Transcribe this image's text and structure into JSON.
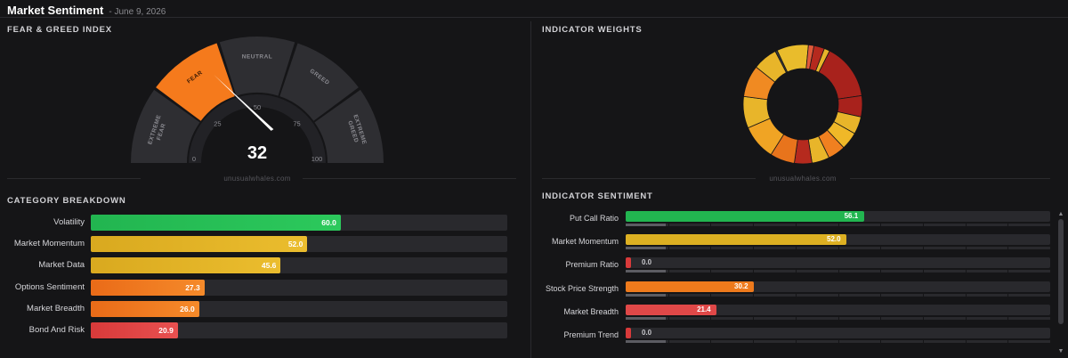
{
  "header": {
    "title": "Market Sentiment",
    "date": "- June 9, 2026"
  },
  "fear_greed": {
    "title": "FEAR & GREED INDEX",
    "value": 32,
    "value_label": "32",
    "min": 0,
    "max": 100,
    "segments": [
      {
        "label": "EXTREME FEAR",
        "line1": "EXTREME",
        "line2": "FEAR",
        "from": 0,
        "to": 20,
        "active": false
      },
      {
        "label": "FEAR",
        "line1": "FEAR",
        "line2": "",
        "from": 20,
        "to": 40,
        "active": true
      },
      {
        "label": "NEUTRAL",
        "line1": "NEUTRAL",
        "line2": "",
        "from": 40,
        "to": 60,
        "active": false
      },
      {
        "label": "GREED",
        "line1": "GREED",
        "line2": "",
        "from": 60,
        "to": 80,
        "active": false
      },
      {
        "label": "EXTREME GREED",
        "line1": "EXTREME",
        "line2": "GREED",
        "from": 80,
        "to": 100,
        "active": false
      }
    ],
    "ticks": [
      {
        "value": 0,
        "label": "0"
      },
      {
        "value": 25,
        "label": "25"
      },
      {
        "value": 50,
        "label": "50"
      },
      {
        "value": 75,
        "label": "75"
      },
      {
        "value": 100,
        "label": "100"
      }
    ],
    "colors": {
      "inactive": "#2e2e32",
      "active": "#f57a1c",
      "needle": "#ffffff"
    },
    "watermark": "unusualwhales.com"
  },
  "weights": {
    "title": "INDICATOR WEIGHTS",
    "watermark": "unusualwhales.com"
  },
  "chart_data": {
    "type": "pie",
    "title": "INDICATOR WEIGHTS",
    "donut": true,
    "slices": [
      {
        "value": 7,
        "color": "#e8b52a"
      },
      {
        "value": 0.6,
        "color": "#3a3a3a"
      },
      {
        "value": 9,
        "color": "#e9bc2c"
      },
      {
        "value": 1.6,
        "color": "#e05a3a"
      },
      {
        "value": 3,
        "color": "#b52a1e"
      },
      {
        "value": 1.6,
        "color": "#e8b52a"
      },
      {
        "value": 16,
        "color": "#a8221c"
      },
      {
        "value": 6,
        "color": "#a8221c"
      },
      {
        "value": 5,
        "color": "#e8b52a"
      },
      {
        "value": 5,
        "color": "#f0b828"
      },
      {
        "value": 5,
        "color": "#f08020"
      },
      {
        "value": 5,
        "color": "#e8b52a"
      },
      {
        "value": 5,
        "color": "#b52a1e"
      },
      {
        "value": 7,
        "color": "#e8741c"
      },
      {
        "value": 10,
        "color": "#f0a424"
      },
      {
        "value": 9,
        "color": "#e8b52a"
      },
      {
        "value": 9,
        "color": "#f08a22"
      }
    ]
  },
  "category": {
    "title": "CATEGORY BREAKDOWN",
    "max": 100,
    "rows": [
      {
        "label": "Volatility",
        "value": 60.0,
        "value_label": "60.0",
        "color": "#22b550",
        "color2": "#2cc95c"
      },
      {
        "label": "Market Momentum",
        "value": 52.0,
        "value_label": "52.0",
        "color": "#d9a91f",
        "color2": "#ebbd2e"
      },
      {
        "label": "Market Data",
        "value": 45.6,
        "value_label": "45.6",
        "color": "#d9a91f",
        "color2": "#ebbd2e"
      },
      {
        "label": "Options Sentiment",
        "value": 27.3,
        "value_label": "27.3",
        "color": "#ea6b18",
        "color2": "#f58a2a"
      },
      {
        "label": "Market Breadth",
        "value": 26.0,
        "value_label": "26.0",
        "color": "#ea6b18",
        "color2": "#f58a2a"
      },
      {
        "label": "Bond And Risk",
        "value": 20.9,
        "value_label": "20.9",
        "color": "#d83a3a",
        "color2": "#e85050"
      }
    ]
  },
  "indicators": {
    "title": "INDICATOR SENTIMENT",
    "max": 100,
    "rows": [
      {
        "label": "Put Call Ratio",
        "value": 56.1,
        "value_label": "56.1",
        "color": "#22b550",
        "sub": 9.5
      },
      {
        "label": "Market Momentum",
        "value": 52.0,
        "value_label": "52.0",
        "color": "#ddb022",
        "sub": 9.5
      },
      {
        "label": "Premium Ratio",
        "value": 0.0,
        "value_label": "0.0",
        "color": "#d83a3a",
        "sub": 9.5
      },
      {
        "label": "Stock Price Strength",
        "value": 30.2,
        "value_label": "30.2",
        "color": "#ee7a1c",
        "sub": 9.5
      },
      {
        "label": "Market Breadth",
        "value": 21.4,
        "value_label": "21.4",
        "color": "#e04848",
        "sub": 9.5
      },
      {
        "label": "Premium Trend",
        "value": 0.0,
        "value_label": "0.0",
        "color": "#d83a3a",
        "sub": 9.5
      }
    ]
  },
  "scroll": {
    "up_glyph": "▲",
    "down_glyph": "▼"
  }
}
